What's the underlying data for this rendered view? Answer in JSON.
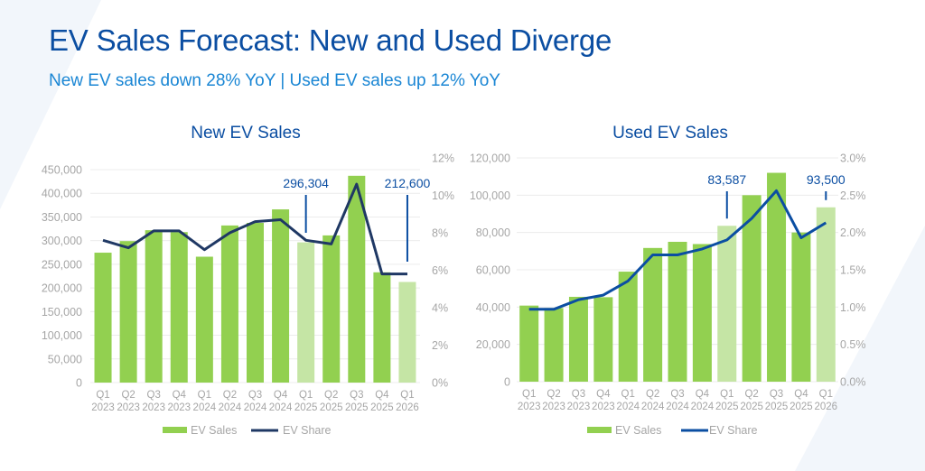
{
  "header": {
    "title": "EV Sales Forecast: New and Used Diverge",
    "subtitle": "New EV sales down 28% YoY | Used EV sales up 12% YoY"
  },
  "colors": {
    "title": "#0b4ea2",
    "subtitle": "#1a86d4",
    "bar_actual": "#92d050",
    "bar_forecast": "#c5e5a5",
    "line_new": "#1f3864",
    "line_used": "#0b4ea2",
    "axis_text": "#a6a6a6",
    "gridline": "#ececec",
    "annotation": "#0b4ea2"
  },
  "chart_data": [
    {
      "type": "bar+line",
      "title": "New EV Sales",
      "categories": [
        "Q1 2023",
        "Q2 2023",
        "Q3 2023",
        "Q4 2023",
        "Q1 2024",
        "Q2 2024",
        "Q3 2024",
        "Q4 2024",
        "Q1 2025",
        "Q2 2025",
        "Q3 2025",
        "Q4 2025",
        "Q1 2026"
      ],
      "category_lines": [
        [
          "Q1",
          "2023"
        ],
        [
          "Q2",
          "2023"
        ],
        [
          "Q3",
          "2023"
        ],
        [
          "Q4",
          "2023"
        ],
        [
          "Q1",
          "2024"
        ],
        [
          "Q2",
          "2024"
        ],
        [
          "Q3",
          "2024"
        ],
        [
          "Q4",
          "2024"
        ],
        [
          "Q1",
          "2025"
        ],
        [
          "Q2",
          "2025"
        ],
        [
          "Q3",
          "2025"
        ],
        [
          "Q4",
          "2025"
        ],
        [
          "Q1",
          "2026"
        ]
      ],
      "series": [
        {
          "name": "EV Sales",
          "type": "bar",
          "axis": "left",
          "values": [
            274500,
            299000,
            322000,
            318000,
            266000,
            332000,
            337500,
            366000,
            296304,
            311000,
            437000,
            233000,
            212600
          ],
          "highlighted": [
            false,
            false,
            false,
            false,
            false,
            false,
            false,
            false,
            true,
            false,
            false,
            false,
            true
          ]
        },
        {
          "name": "EV Share",
          "type": "line",
          "axis": "right",
          "values": [
            7.6,
            7.2,
            8.1,
            8.1,
            7.1,
            8.0,
            8.6,
            8.7,
            7.6,
            7.4,
            10.6,
            5.8,
            5.8
          ]
        }
      ],
      "annotations": [
        {
          "category": "Q1 2025",
          "text": "296,304"
        },
        {
          "category": "Q1 2026",
          "text": "212,600"
        }
      ],
      "ylim_left": [
        0,
        450000
      ],
      "yticks_left": [
        "0",
        "50,000",
        "100,000",
        "150,000",
        "200,000",
        "250,000",
        "300,000",
        "350,000",
        "400,000",
        "450,000"
      ],
      "ylim_right": [
        0,
        12
      ],
      "yticks_right": [
        "0%",
        "2%",
        "4%",
        "6%",
        "8%",
        "10%",
        "12%"
      ],
      "legend": [
        "EV Sales",
        "EV Share"
      ],
      "legend_position": "bottom",
      "grid": true
    },
    {
      "type": "bar+line",
      "title": "Used EV Sales",
      "categories": [
        "Q1 2023",
        "Q2 2023",
        "Q3 2023",
        "Q4 2023",
        "Q1 2024",
        "Q2 2024",
        "Q3 2024",
        "Q4 2024",
        "Q1 2025",
        "Q2 2025",
        "Q3 2025",
        "Q4 2025",
        "Q1 2026"
      ],
      "category_lines": [
        [
          "Q1",
          "2023"
        ],
        [
          "Q2",
          "2023"
        ],
        [
          "Q3",
          "2023"
        ],
        [
          "Q4",
          "2023"
        ],
        [
          "Q1",
          "2024"
        ],
        [
          "Q2",
          "2024"
        ],
        [
          "Q3",
          "2024"
        ],
        [
          "Q4",
          "2024"
        ],
        [
          "Q1",
          "2025"
        ],
        [
          "Q2",
          "2025"
        ],
        [
          "Q3",
          "2025"
        ],
        [
          "Q4",
          "2025"
        ],
        [
          "Q1",
          "2026"
        ]
      ],
      "series": [
        {
          "name": "EV Sales",
          "type": "bar",
          "axis": "left",
          "values": [
            40800,
            39500,
            45500,
            45300,
            59000,
            71700,
            75000,
            73800,
            83587,
            100000,
            112000,
            80000,
            93500
          ],
          "highlighted": [
            false,
            false,
            false,
            false,
            false,
            false,
            false,
            false,
            true,
            false,
            false,
            false,
            true
          ]
        },
        {
          "name": "EV Share",
          "type": "line",
          "axis": "right",
          "values": [
            0.97,
            0.97,
            1.1,
            1.16,
            1.35,
            1.7,
            1.7,
            1.78,
            1.9,
            2.19,
            2.56,
            1.93,
            2.13
          ]
        }
      ],
      "annotations": [
        {
          "category": "Q1 2025",
          "text": "83,587"
        },
        {
          "category": "Q1 2026",
          "text": "93,500"
        }
      ],
      "ylim_left": [
        0,
        120000
      ],
      "yticks_left": [
        "0",
        "20,000",
        "40,000",
        "60,000",
        "80,000",
        "100,000",
        "120,000"
      ],
      "ylim_right": [
        0,
        3
      ],
      "yticks_right": [
        "0.0%",
        "0.5%",
        "1.0%",
        "1.5%",
        "2.0%",
        "2.5%",
        "3.0%"
      ],
      "legend": [
        "EV Sales",
        "EV Share"
      ],
      "legend_position": "bottom",
      "grid": true
    }
  ]
}
